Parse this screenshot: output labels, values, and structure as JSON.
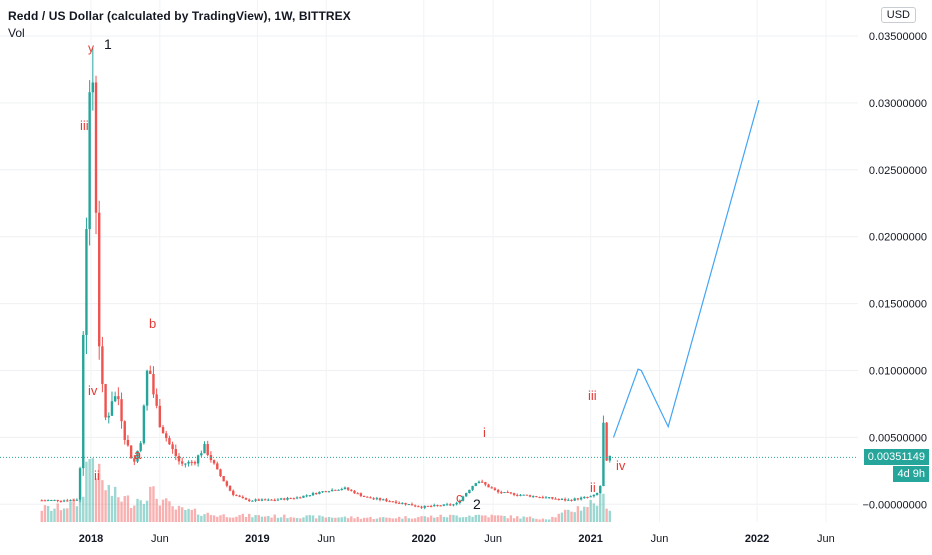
{
  "header": {
    "title": "Redd / US Dollar (calculated by TradingView), 1W, BITTREX",
    "volume_label": "Vol",
    "currency_button": "USD"
  },
  "price_axis": {
    "ticks": [
      {
        "value": 0.035,
        "label": "0.03500000"
      },
      {
        "value": 0.03,
        "label": "0.03000000"
      },
      {
        "value": 0.025,
        "label": "0.02500000"
      },
      {
        "value": 0.02,
        "label": "0.02000000"
      },
      {
        "value": 0.015,
        "label": "0.01500000"
      },
      {
        "value": 0.01,
        "label": "0.01000000"
      },
      {
        "value": 0.005,
        "label": "0.00500000"
      },
      {
        "value": 0.0,
        "label": "−0.00000000"
      }
    ],
    "current_price": "0.00351149",
    "countdown": "4d 9h",
    "colors": {
      "price_label": "#26a69a",
      "countdown_bg": "#26a69a",
      "price_line": "#26a69a"
    }
  },
  "time_axis": {
    "ticks": [
      {
        "label": "2018",
        "bold": true
      },
      {
        "label": "Jun",
        "bold": false
      },
      {
        "label": "2019",
        "bold": true
      },
      {
        "label": "Jun",
        "bold": false
      },
      {
        "label": "2020",
        "bold": true
      },
      {
        "label": "Jun",
        "bold": false
      },
      {
        "label": "2021",
        "bold": true
      },
      {
        "label": "Jun",
        "bold": false
      },
      {
        "label": "2022",
        "bold": true
      },
      {
        "label": "Jun",
        "bold": false
      }
    ]
  },
  "annotations": [
    {
      "text": "y",
      "color": "#e53935"
    },
    {
      "text": "1",
      "color": "#131722"
    },
    {
      "text": "iii",
      "color": "#e53935"
    },
    {
      "text": "iv",
      "color": "#e53935"
    },
    {
      "text": "ii",
      "color": "#e53935"
    },
    {
      "text": "b",
      "color": "#e53935"
    },
    {
      "text": "a",
      "color": "#e53935"
    },
    {
      "text": "i",
      "color": "#e53935"
    },
    {
      "text": "c",
      "color": "#e53935"
    },
    {
      "text": "2",
      "color": "#131722"
    },
    {
      "text": "iii",
      "color": "#e53935"
    },
    {
      "text": "ii",
      "color": "#e53935"
    },
    {
      "text": "iv",
      "color": "#e53935"
    }
  ],
  "chart_data": {
    "type": "candlestick",
    "symbol": "Redd / US Dollar",
    "interval": "1W",
    "exchange": "BITTREX",
    "ylim": [
      -0.0026,
      0.0368
    ],
    "colors": {
      "up": "#26a69a",
      "down": "#ef5350",
      "projection": "#42a5f5"
    },
    "price_series": [
      {
        "x": "2017-09-15",
        "y": 0.0003
      },
      {
        "x": "2017-10-15",
        "y": 0.0003
      },
      {
        "x": "2017-11-15",
        "y": 0.0003
      },
      {
        "x": "2017-12-10",
        "y": 0.0004
      },
      {
        "x": "2017-12-20",
        "y": 0.0155
      },
      {
        "x": "2017-12-31",
        "y": 0.028
      },
      {
        "x": "2018-01-07",
        "y": 0.0336
      },
      {
        "x": "2018-01-14",
        "y": 0.025
      },
      {
        "x": "2018-01-21",
        "y": 0.013
      },
      {
        "x": "2018-01-28",
        "y": 0.009
      },
      {
        "x": "2018-02-07",
        "y": 0.006
      },
      {
        "x": "2018-02-20",
        "y": 0.008
      },
      {
        "x": "2018-03-05",
        "y": 0.008
      },
      {
        "x": "2018-03-20",
        "y": 0.005
      },
      {
        "x": "2018-04-08",
        "y": 0.003
      },
      {
        "x": "2018-04-25",
        "y": 0.005
      },
      {
        "x": "2018-05-10",
        "y": 0.0108
      },
      {
        "x": "2018-05-20",
        "y": 0.0085
      },
      {
        "x": "2018-06-05",
        "y": 0.006
      },
      {
        "x": "2018-06-25",
        "y": 0.0045
      },
      {
        "x": "2018-07-20",
        "y": 0.003
      },
      {
        "x": "2018-08-20",
        "y": 0.0032
      },
      {
        "x": "2018-09-10",
        "y": 0.0043
      },
      {
        "x": "2018-10-10",
        "y": 0.0024
      },
      {
        "x": "2018-11-10",
        "y": 0.0008
      },
      {
        "x": "2018-12-10",
        "y": 0.0003
      },
      {
        "x": "2019-02-01",
        "y": 0.0003
      },
      {
        "x": "2019-04-01",
        "y": 0.0005
      },
      {
        "x": "2019-06-01",
        "y": 0.001
      },
      {
        "x": "2019-07-15",
        "y": 0.0012
      },
      {
        "x": "2019-09-01",
        "y": 0.0005
      },
      {
        "x": "2019-11-01",
        "y": 0.0002
      },
      {
        "x": "2020-01-01",
        "y": -0.0002
      },
      {
        "x": "2020-03-15",
        "y": 0.0
      },
      {
        "x": "2020-05-01",
        "y": 0.0018
      },
      {
        "x": "2020-06-15",
        "y": 0.0009
      },
      {
        "x": "2020-09-01",
        "y": 0.0006
      },
      {
        "x": "2020-11-15",
        "y": 0.0003
      },
      {
        "x": "2021-01-10",
        "y": 0.0006
      },
      {
        "x": "2021-01-25",
        "y": 0.001
      },
      {
        "x": "2021-02-01",
        "y": 0.0062
      },
      {
        "x": "2021-02-07",
        "y": 0.003
      },
      {
        "x": "2021-02-15",
        "y": 0.0035
      }
    ],
    "volume_series": [
      {
        "x": "2017-10-15",
        "v": 0.2
      },
      {
        "x": "2017-12-10",
        "v": 0.3
      },
      {
        "x": "2017-12-24",
        "v": 0.9
      },
      {
        "x": "2018-01-07",
        "v": 1.0
      },
      {
        "x": "2018-01-21",
        "v": 0.6
      },
      {
        "x": "2018-02-20",
        "v": 0.4
      },
      {
        "x": "2018-04-01",
        "v": 0.3
      },
      {
        "x": "2018-05-10",
        "v": 0.45
      },
      {
        "x": "2018-07-01",
        "v": 0.2
      },
      {
        "x": "2018-10-01",
        "v": 0.1
      },
      {
        "x": "2019-04-01",
        "v": 0.08
      },
      {
        "x": "2019-10-01",
        "v": 0.06
      },
      {
        "x": "2020-05-01",
        "v": 0.1
      },
      {
        "x": "2020-10-01",
        "v": 0.05
      },
      {
        "x": "2021-02-01",
        "v": 0.35
      },
      {
        "x": "2021-02-15",
        "v": 0.15
      }
    ],
    "projection_path": [
      {
        "x": "2021-02-20",
        "y": 0.005
      },
      {
        "x": "2021-04-15",
        "y": 0.0101
      },
      {
        "x": "2021-04-22",
        "y": 0.01
      },
      {
        "x": "2021-06-20",
        "y": 0.0058
      },
      {
        "x": "2022-01-05",
        "y": 0.0302
      }
    ]
  }
}
